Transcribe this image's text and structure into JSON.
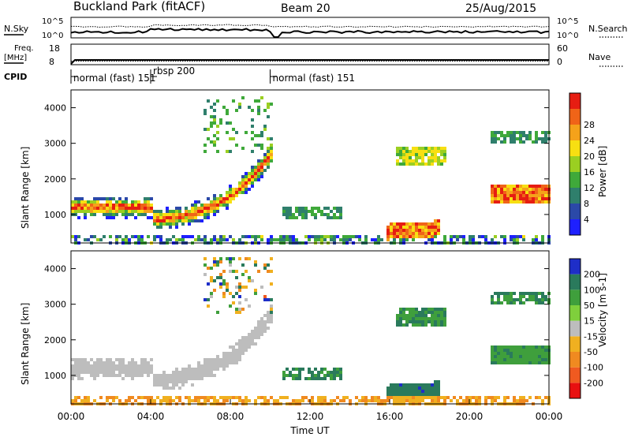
{
  "header": {
    "title": "Buckland Park (fitACF)",
    "beam": "Beam 20",
    "date": "25/Aug/2015"
  },
  "noise_panel": {
    "left_label": "N.Sky",
    "right_label": "N.Search",
    "left_ticks": [
      "10^5",
      "10^0"
    ],
    "right_ticks": [
      "10^5",
      "10^0"
    ]
  },
  "freq_panel": {
    "left_label_line1": "Freq.",
    "left_label_line2": "[MHz]",
    "left_ticks": [
      "18",
      "8"
    ],
    "right_label": "Nave",
    "right_ticks": [
      "60",
      "0"
    ]
  },
  "cpid_panel": {
    "label": "CPID",
    "segments": [
      {
        "label": "normal (fast) 151",
        "start_hour": 0
      },
      {
        "label": "rbsp 200",
        "start_hour": 4
      },
      {
        "label": "normal (fast) 151",
        "start_hour": 10
      }
    ]
  },
  "chart_data": [
    {
      "type": "heatmap",
      "name": "power",
      "ylabel": "Slant Range [km]",
      "y_ticks": [
        "1000",
        "2000",
        "3000",
        "4000"
      ],
      "ylim": [
        200,
        4500
      ],
      "xlim": [
        0,
        24
      ],
      "colorbar_label": "Power [dB]",
      "colorbar_ticks": [
        "4",
        "8",
        "12",
        "16",
        "20",
        "24",
        "28"
      ],
      "colorbar_colors": [
        "#1e20ff",
        "#2b49a8",
        "#2f7f6c",
        "#3fa93a",
        "#9bcf21",
        "#f7df12",
        "#f5a21a",
        "#f06418",
        "#e61d12"
      ]
    },
    {
      "type": "heatmap",
      "name": "velocity",
      "ylabel": "Slant Range [km]",
      "y_ticks": [
        "1000",
        "2000",
        "3000",
        "4000"
      ],
      "ylim": [
        200,
        4500
      ],
      "xlim": [
        0,
        24
      ],
      "xlabel": "Time UT",
      "x_ticks": [
        "00:00",
        "04:00",
        "08:00",
        "12:00",
        "16:00",
        "20:00",
        "00:00"
      ],
      "colorbar_label": "Velocity [m s-1]",
      "colorbar_ticks": [
        "200",
        "100",
        "50",
        "15",
        "-15",
        "-50",
        "-100",
        "-200"
      ],
      "colorbar_colors": [
        "#1e2ec8",
        "#2a7a5c",
        "#3f9f3c",
        "#7fcf3c",
        "#bdbdbd",
        "#f0b020",
        "#f08a20",
        "#f05a20",
        "#e81010"
      ]
    }
  ]
}
